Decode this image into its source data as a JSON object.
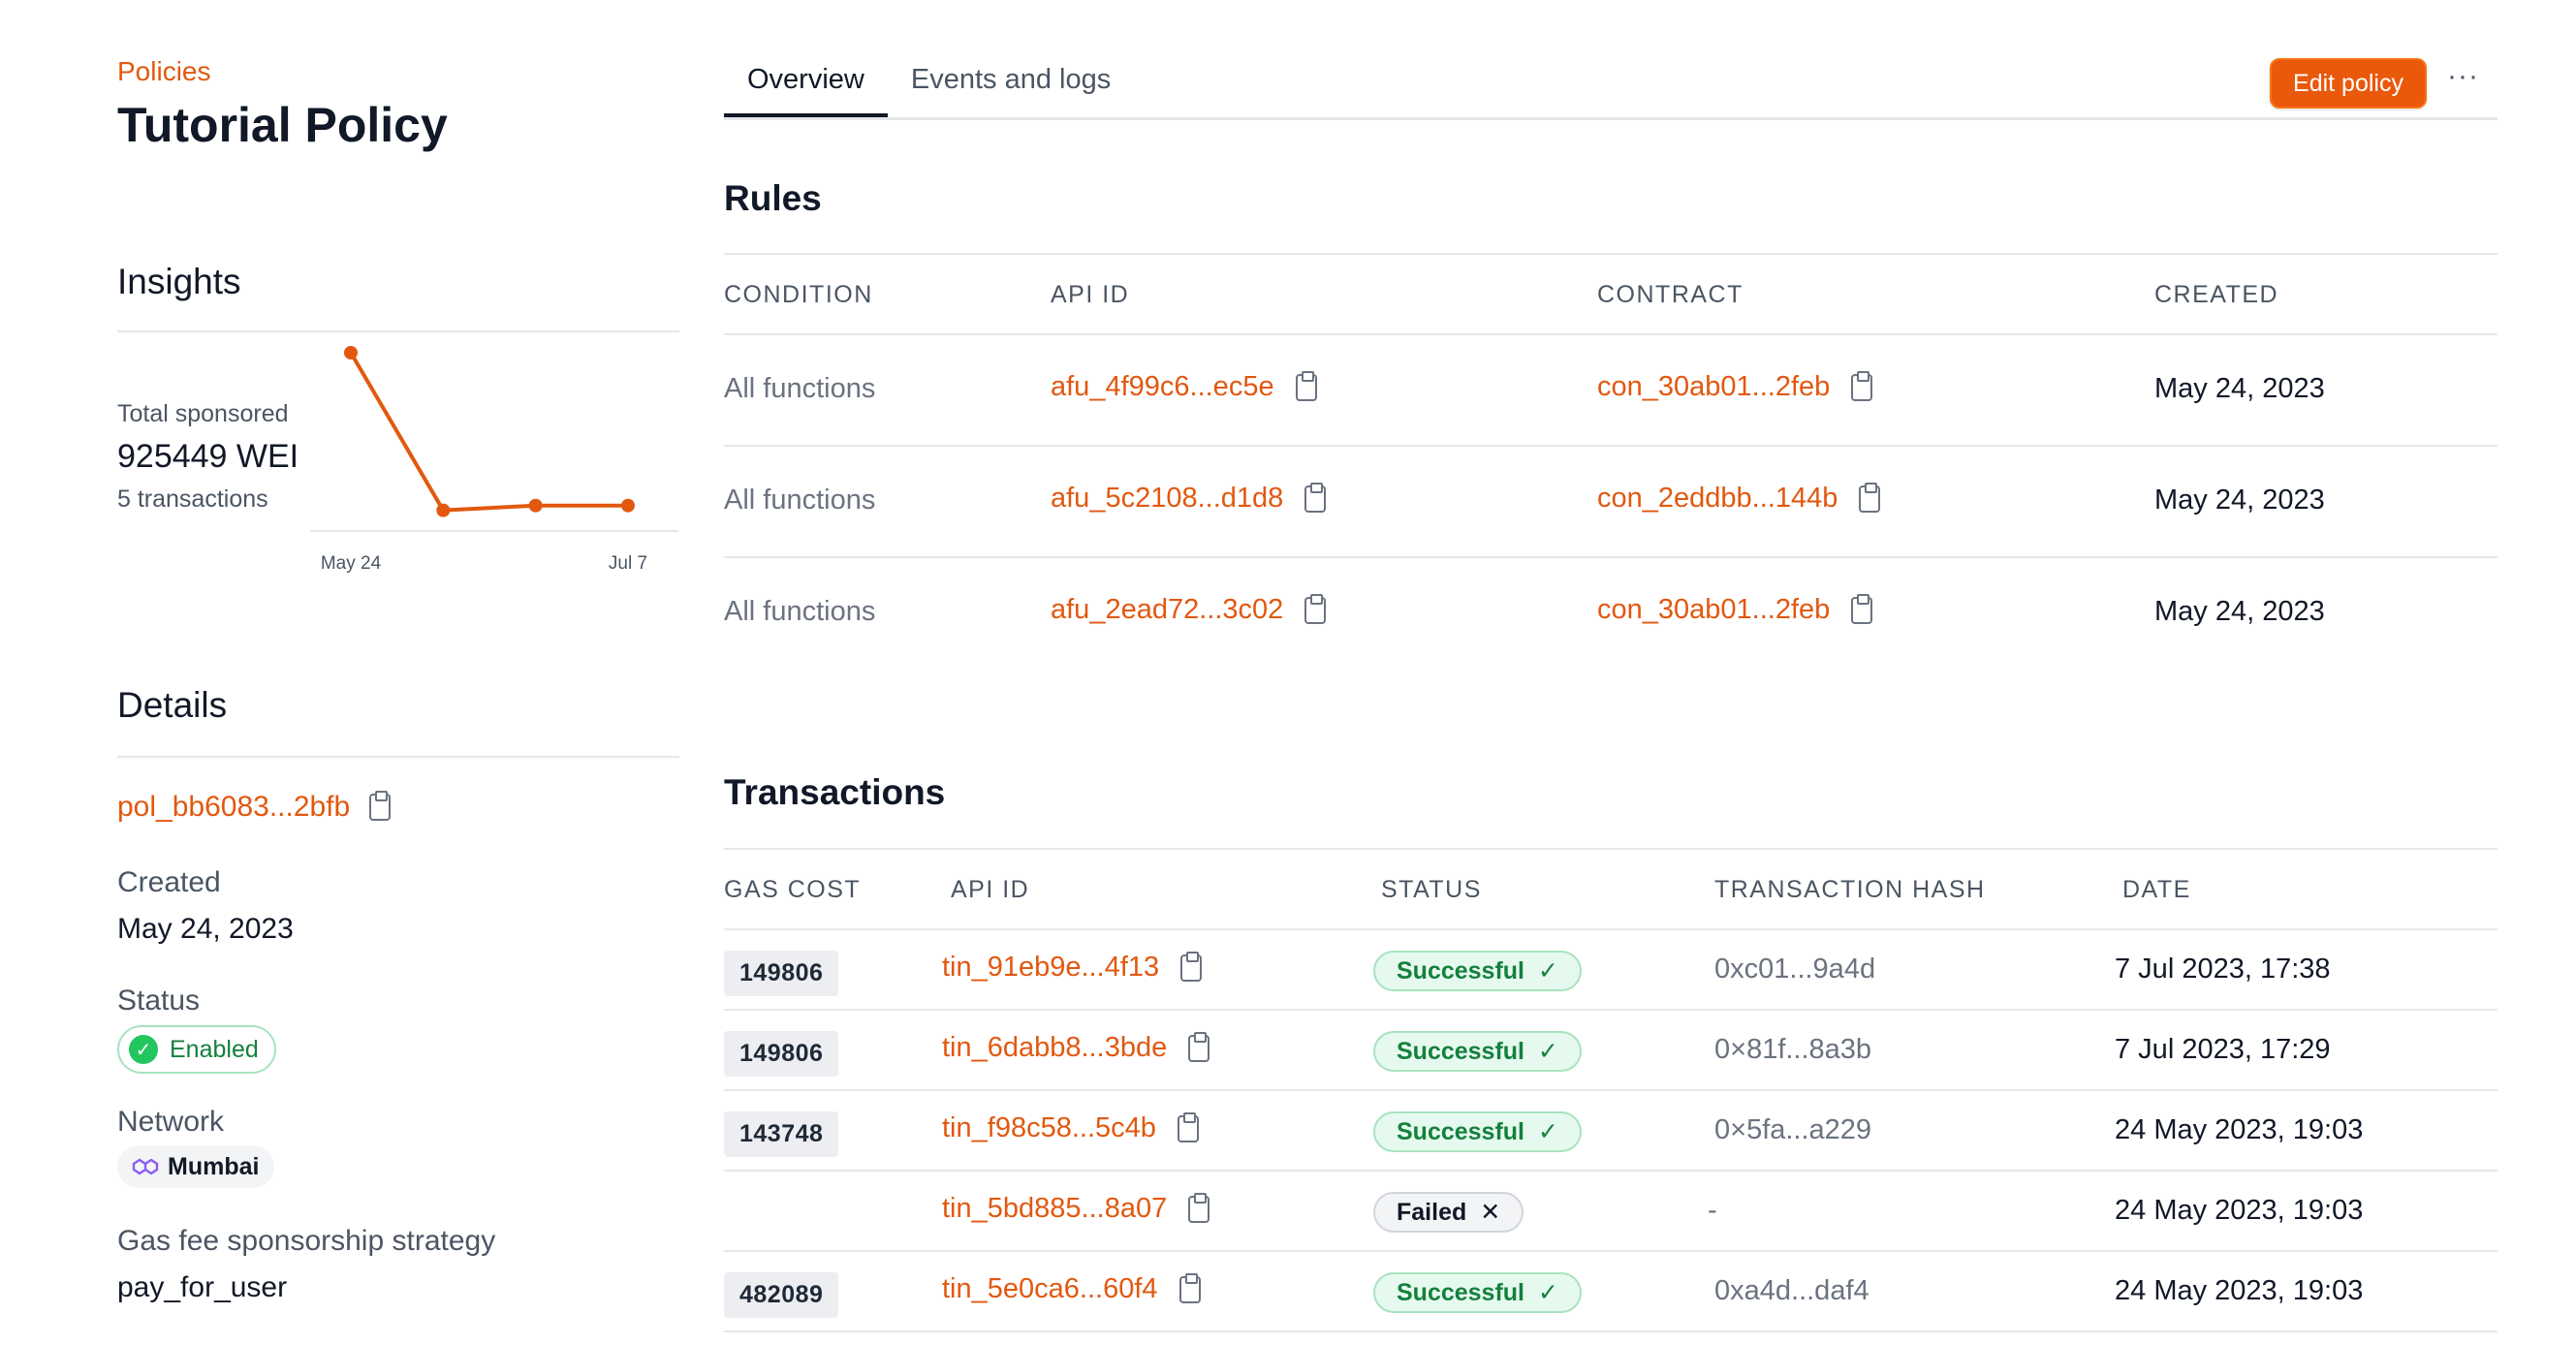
{
  "breadcrumb": "Policies",
  "page_title": "Tutorial Policy",
  "insights": {
    "title": "Insights",
    "stat_label": "Total sponsored",
    "stat_value": "925449 WEI",
    "stat_sub": "5 transactions",
    "x_labels": [
      "May 24",
      "Jul 7"
    ],
    "series": [
      1.0,
      0.02,
      0.05,
      0.05
    ]
  },
  "details": {
    "title": "Details",
    "policy_id": "pol_bb6083...2bfb",
    "created_label": "Created",
    "created_value": "May 24, 2023",
    "status_label": "Status",
    "status_value": "Enabled",
    "network_label": "Network",
    "network_value": "Mumbai",
    "gas_label": "Gas fee sponsorship strategy",
    "gas_value": "pay_for_user"
  },
  "tabs": [
    {
      "label": "Overview",
      "active": true
    },
    {
      "label": "Events and logs",
      "active": false
    }
  ],
  "actions": {
    "edit_label": "Edit policy",
    "more_label": "···"
  },
  "rules": {
    "title": "Rules",
    "headers": [
      "CONDITION",
      "API ID",
      "CONTRACT",
      "CREATED"
    ],
    "rows": [
      {
        "condition": "All functions",
        "api_id": "afu_4f99c6...ec5e",
        "contract": "con_30ab01...2feb",
        "created": "May 24, 2023"
      },
      {
        "condition": "All functions",
        "api_id": "afu_5c2108...d1d8",
        "contract": "con_2eddbb...144b",
        "created": "May 24, 2023"
      },
      {
        "condition": "All functions",
        "api_id": "afu_2ead72...3c02",
        "contract": "con_30ab01...2feb",
        "created": "May 24, 2023"
      }
    ]
  },
  "transactions": {
    "title": "Transactions",
    "headers": [
      "GAS COST",
      "API ID",
      "STATUS",
      "TRANSACTION HASH",
      "DATE"
    ],
    "rows": [
      {
        "gas": "149806",
        "api_id": "tin_91eb9e...4f13",
        "status": "Successful",
        "status_icon": "✓",
        "hash": "0xc01...9a4d",
        "date": "7 Jul 2023, 17:38"
      },
      {
        "gas": "149806",
        "api_id": "tin_6dabb8...3bde",
        "status": "Successful",
        "status_icon": "✓",
        "hash": "0×81f...8a3b",
        "date": "7 Jul 2023, 17:29"
      },
      {
        "gas": "143748",
        "api_id": "tin_f98c58...5c4b",
        "status": "Successful",
        "status_icon": "✓",
        "hash": "0×5fa...a229",
        "date": "24 May 2023, 19:03"
      },
      {
        "gas": "",
        "api_id": "tin_5bd885...8a07",
        "status": "Failed",
        "status_icon": "✕",
        "hash": "-",
        "date": "24 May 2023, 19:03"
      },
      {
        "gas": "482089",
        "api_id": "tin_5e0ca6...60f4",
        "status": "Successful",
        "status_icon": "✓",
        "hash": "0xa4d...daf4",
        "date": "24 May 2023, 19:03"
      }
    ]
  },
  "colors": {
    "accent": "#e2580f",
    "success": "#15803d",
    "success_bg": "#e6f9ef"
  }
}
